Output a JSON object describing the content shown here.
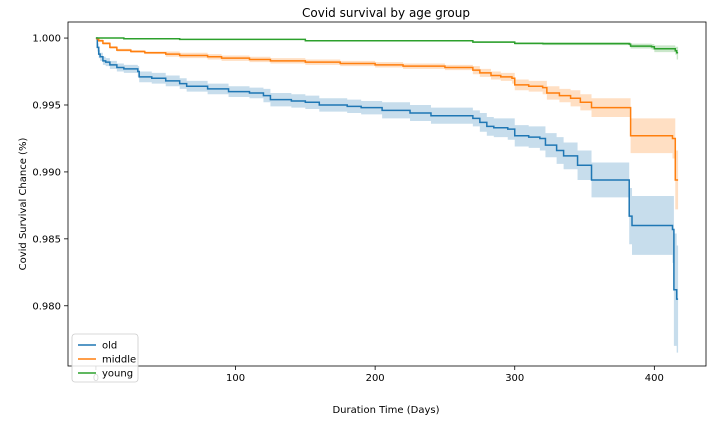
{
  "chart_data": {
    "type": "line",
    "title": "Covid survival by age group",
    "xlabel": "Duration Time (Days)",
    "ylabel": "Covid Survival Chance (%)",
    "xlim": [
      -20,
      437
    ],
    "ylim": [
      0.9755,
      1.0012
    ],
    "xticks": [
      0,
      100,
      200,
      300,
      400
    ],
    "yticks": [
      0.98,
      0.985,
      0.99,
      0.995,
      1.0
    ],
    "ytick_labels": [
      "0.980",
      "0.985",
      "0.990",
      "0.995",
      "1.000"
    ],
    "grid": false,
    "legend_position": "lower-left",
    "series": [
      {
        "name": "old",
        "color": "#1f77b4",
        "points": [
          [
            0,
            1.0
          ],
          [
            1,
            0.9993
          ],
          [
            2,
            0.9988
          ],
          [
            3,
            0.9986
          ],
          [
            5,
            0.9983
          ],
          [
            7,
            0.9982
          ],
          [
            10,
            0.998
          ],
          [
            15,
            0.9978
          ],
          [
            20,
            0.9977
          ],
          [
            30,
            0.9975
          ],
          [
            31,
            0.9971
          ],
          [
            40,
            0.997
          ],
          [
            50,
            0.9968
          ],
          [
            60,
            0.9966
          ],
          [
            65,
            0.9964
          ],
          [
            80,
            0.9962
          ],
          [
            95,
            0.996
          ],
          [
            110,
            0.9959
          ],
          [
            120,
            0.9957
          ],
          [
            125,
            0.9954
          ],
          [
            140,
            0.9953
          ],
          [
            150,
            0.9952
          ],
          [
            160,
            0.995
          ],
          [
            180,
            0.9949
          ],
          [
            190,
            0.9948
          ],
          [
            205,
            0.9946
          ],
          [
            225,
            0.9944
          ],
          [
            240,
            0.9942
          ],
          [
            265,
            0.9942
          ],
          [
            270,
            0.994
          ],
          [
            275,
            0.9937
          ],
          [
            280,
            0.9934
          ],
          [
            285,
            0.9933
          ],
          [
            295,
            0.9932
          ],
          [
            300,
            0.9927
          ],
          [
            310,
            0.9926
          ],
          [
            318,
            0.9925
          ],
          [
            322,
            0.992
          ],
          [
            330,
            0.9916
          ],
          [
            335,
            0.9912
          ],
          [
            345,
            0.9905
          ],
          [
            355,
            0.9894
          ],
          [
            381,
            0.9894
          ],
          [
            382,
            0.9867
          ],
          [
            384,
            0.986
          ],
          [
            412,
            0.986
          ],
          [
            413,
            0.9857
          ],
          [
            414,
            0.9812
          ],
          [
            416,
            0.9805
          ],
          [
            417,
            0.9805
          ]
        ],
        "ci_lower": [
          [
            0,
            1.0
          ],
          [
            1,
            0.999
          ],
          [
            2,
            0.9985
          ],
          [
            3,
            0.9983
          ],
          [
            5,
            0.998
          ],
          [
            7,
            0.9979
          ],
          [
            10,
            0.9977
          ],
          [
            15,
            0.9975
          ],
          [
            20,
            0.9974
          ],
          [
            30,
            0.9971
          ],
          [
            31,
            0.9967
          ],
          [
            40,
            0.9966
          ],
          [
            50,
            0.9964
          ],
          [
            60,
            0.9962
          ],
          [
            65,
            0.996
          ],
          [
            80,
            0.9958
          ],
          [
            95,
            0.9956
          ],
          [
            110,
            0.9955
          ],
          [
            120,
            0.9952
          ],
          [
            125,
            0.9949
          ],
          [
            140,
            0.9948
          ],
          [
            150,
            0.9947
          ],
          [
            160,
            0.9945
          ],
          [
            180,
            0.9944
          ],
          [
            190,
            0.9943
          ],
          [
            205,
            0.994
          ],
          [
            225,
            0.9938
          ],
          [
            240,
            0.9936
          ],
          [
            265,
            0.9936
          ],
          [
            270,
            0.9934
          ],
          [
            275,
            0.993
          ],
          [
            280,
            0.9927
          ],
          [
            285,
            0.9926
          ],
          [
            295,
            0.9924
          ],
          [
            300,
            0.9919
          ],
          [
            310,
            0.9918
          ],
          [
            318,
            0.9916
          ],
          [
            322,
            0.9911
          ],
          [
            330,
            0.9906
          ],
          [
            335,
            0.9902
          ],
          [
            345,
            0.9894
          ],
          [
            355,
            0.9881
          ],
          [
            381,
            0.9881
          ],
          [
            382,
            0.9846
          ],
          [
            384,
            0.9838
          ],
          [
            412,
            0.9838
          ],
          [
            413,
            0.9832
          ],
          [
            414,
            0.977
          ],
          [
            416,
            0.9765
          ],
          [
            417,
            0.9765
          ]
        ],
        "ci_upper": [
          [
            0,
            1.0
          ],
          [
            1,
            0.9996
          ],
          [
            2,
            0.9991
          ],
          [
            3,
            0.9989
          ],
          [
            5,
            0.9986
          ],
          [
            7,
            0.9985
          ],
          [
            10,
            0.9983
          ],
          [
            15,
            0.9981
          ],
          [
            20,
            0.998
          ],
          [
            30,
            0.9979
          ],
          [
            31,
            0.9975
          ],
          [
            40,
            0.9974
          ],
          [
            50,
            0.9972
          ],
          [
            60,
            0.997
          ],
          [
            65,
            0.9968
          ],
          [
            80,
            0.9966
          ],
          [
            95,
            0.9964
          ],
          [
            110,
            0.9963
          ],
          [
            120,
            0.9962
          ],
          [
            125,
            0.9959
          ],
          [
            140,
            0.9958
          ],
          [
            150,
            0.9957
          ],
          [
            160,
            0.9955
          ],
          [
            180,
            0.9954
          ],
          [
            190,
            0.9953
          ],
          [
            205,
            0.9952
          ],
          [
            225,
            0.995
          ],
          [
            240,
            0.9948
          ],
          [
            265,
            0.9948
          ],
          [
            270,
            0.9946
          ],
          [
            275,
            0.9944
          ],
          [
            280,
            0.9941
          ],
          [
            285,
            0.994
          ],
          [
            295,
            0.994
          ],
          [
            300,
            0.9935
          ],
          [
            310,
            0.9934
          ],
          [
            318,
            0.9934
          ],
          [
            322,
            0.9929
          ],
          [
            330,
            0.9926
          ],
          [
            335,
            0.9922
          ],
          [
            345,
            0.9916
          ],
          [
            355,
            0.9907
          ],
          [
            381,
            0.9907
          ],
          [
            382,
            0.9888
          ],
          [
            384,
            0.9882
          ],
          [
            412,
            0.9882
          ],
          [
            413,
            0.9882
          ],
          [
            414,
            0.9854
          ],
          [
            416,
            0.9845
          ],
          [
            417,
            0.9845
          ]
        ]
      },
      {
        "name": "middle",
        "color": "#ff7f0e",
        "points": [
          [
            0,
            0.99995
          ],
          [
            2,
            0.9998
          ],
          [
            5,
            0.9996
          ],
          [
            10,
            0.9993
          ],
          [
            15,
            0.9991
          ],
          [
            25,
            0.999
          ],
          [
            35,
            0.9989
          ],
          [
            50,
            0.9988
          ],
          [
            60,
            0.9987
          ],
          [
            80,
            0.9986
          ],
          [
            90,
            0.9985
          ],
          [
            110,
            0.9984
          ],
          [
            125,
            0.9983
          ],
          [
            150,
            0.9982
          ],
          [
            175,
            0.9981
          ],
          [
            200,
            0.998
          ],
          [
            220,
            0.9979
          ],
          [
            250,
            0.9978
          ],
          [
            265,
            0.9978
          ],
          [
            270,
            0.9976
          ],
          [
            275,
            0.9974
          ],
          [
            283,
            0.9972
          ],
          [
            290,
            0.9971
          ],
          [
            298,
            0.997
          ],
          [
            300,
            0.9965
          ],
          [
            310,
            0.9964
          ],
          [
            320,
            0.9963
          ],
          [
            323,
            0.9959
          ],
          [
            332,
            0.9957
          ],
          [
            340,
            0.9955
          ],
          [
            347,
            0.9952
          ],
          [
            355,
            0.9948
          ],
          [
            382,
            0.9948
          ],
          [
            383,
            0.9927
          ],
          [
            412,
            0.9927
          ],
          [
            413,
            0.9925
          ],
          [
            415,
            0.9894
          ],
          [
            417,
            0.9894
          ]
        ],
        "ci_lower": [
          [
            0,
            0.9999
          ],
          [
            2,
            0.9997
          ],
          [
            5,
            0.9995
          ],
          [
            10,
            0.9992
          ],
          [
            15,
            0.999
          ],
          [
            25,
            0.9989
          ],
          [
            35,
            0.9988
          ],
          [
            50,
            0.9986
          ],
          [
            60,
            0.9985
          ],
          [
            80,
            0.9984
          ],
          [
            90,
            0.9983
          ],
          [
            110,
            0.9982
          ],
          [
            125,
            0.9981
          ],
          [
            150,
            0.998
          ],
          [
            175,
            0.9979
          ],
          [
            200,
            0.9978
          ],
          [
            220,
            0.9977
          ],
          [
            250,
            0.9976
          ],
          [
            265,
            0.9976
          ],
          [
            270,
            0.9973
          ],
          [
            275,
            0.9971
          ],
          [
            283,
            0.9969
          ],
          [
            290,
            0.9968
          ],
          [
            298,
            0.9966
          ],
          [
            300,
            0.9961
          ],
          [
            310,
            0.996
          ],
          [
            320,
            0.9958
          ],
          [
            323,
            0.9954
          ],
          [
            332,
            0.9952
          ],
          [
            340,
            0.9949
          ],
          [
            347,
            0.9946
          ],
          [
            355,
            0.9941
          ],
          [
            382,
            0.9941
          ],
          [
            383,
            0.9914
          ],
          [
            412,
            0.9914
          ],
          [
            413,
            0.991
          ],
          [
            415,
            0.9872
          ],
          [
            417,
            0.9872
          ]
        ],
        "ci_upper": [
          [
            0,
            1.0
          ],
          [
            2,
            0.9999
          ],
          [
            5,
            0.9997
          ],
          [
            10,
            0.9994
          ],
          [
            15,
            0.9992
          ],
          [
            25,
            0.9991
          ],
          [
            35,
            0.999
          ],
          [
            50,
            0.999
          ],
          [
            60,
            0.9989
          ],
          [
            80,
            0.9988
          ],
          [
            90,
            0.9987
          ],
          [
            110,
            0.9986
          ],
          [
            125,
            0.9985
          ],
          [
            150,
            0.9984
          ],
          [
            175,
            0.9983
          ],
          [
            200,
            0.9982
          ],
          [
            220,
            0.9981
          ],
          [
            250,
            0.998
          ],
          [
            265,
            0.998
          ],
          [
            270,
            0.9979
          ],
          [
            275,
            0.9977
          ],
          [
            283,
            0.9975
          ],
          [
            290,
            0.9974
          ],
          [
            298,
            0.9974
          ],
          [
            300,
            0.9969
          ],
          [
            310,
            0.9968
          ],
          [
            320,
            0.9968
          ],
          [
            323,
            0.9964
          ],
          [
            332,
            0.9962
          ],
          [
            340,
            0.9961
          ],
          [
            347,
            0.9958
          ],
          [
            355,
            0.9955
          ],
          [
            382,
            0.9955
          ],
          [
            383,
            0.994
          ],
          [
            412,
            0.994
          ],
          [
            413,
            0.994
          ],
          [
            415,
            0.9916
          ],
          [
            417,
            0.9916
          ]
        ]
      },
      {
        "name": "young",
        "color": "#2ca02c",
        "points": [
          [
            0,
            1.0
          ],
          [
            20,
            0.99995
          ],
          [
            60,
            0.9999
          ],
          [
            150,
            0.9998
          ],
          [
            270,
            0.9997
          ],
          [
            300,
            0.9996
          ],
          [
            320,
            0.99958
          ],
          [
            382,
            0.99955
          ],
          [
            383,
            0.9994
          ],
          [
            398,
            0.99935
          ],
          [
            400,
            0.9992
          ],
          [
            415,
            0.99905
          ],
          [
            416,
            0.9989
          ],
          [
            417,
            0.9989
          ]
        ],
        "ci_lower": [
          [
            0,
            1.0
          ],
          [
            20,
            0.99993
          ],
          [
            60,
            0.99987
          ],
          [
            150,
            0.99975
          ],
          [
            270,
            0.99963
          ],
          [
            300,
            0.99952
          ],
          [
            320,
            0.99947
          ],
          [
            382,
            0.99942
          ],
          [
            383,
            0.99922
          ],
          [
            398,
            0.99915
          ],
          [
            400,
            0.99895
          ],
          [
            415,
            0.99875
          ],
          [
            416,
            0.9984
          ],
          [
            417,
            0.9984
          ]
        ],
        "ci_upper": [
          [
            0,
            1.0
          ],
          [
            20,
            0.99997
          ],
          [
            60,
            0.99993
          ],
          [
            150,
            0.99985
          ],
          [
            270,
            0.99977
          ],
          [
            300,
            0.99968
          ],
          [
            320,
            0.99969
          ],
          [
            382,
            0.99968
          ],
          [
            383,
            0.99958
          ],
          [
            398,
            0.99955
          ],
          [
            400,
            0.99945
          ],
          [
            415,
            0.99935
          ],
          [
            416,
            0.99935
          ],
          [
            417,
            0.99935
          ]
        ]
      }
    ]
  }
}
